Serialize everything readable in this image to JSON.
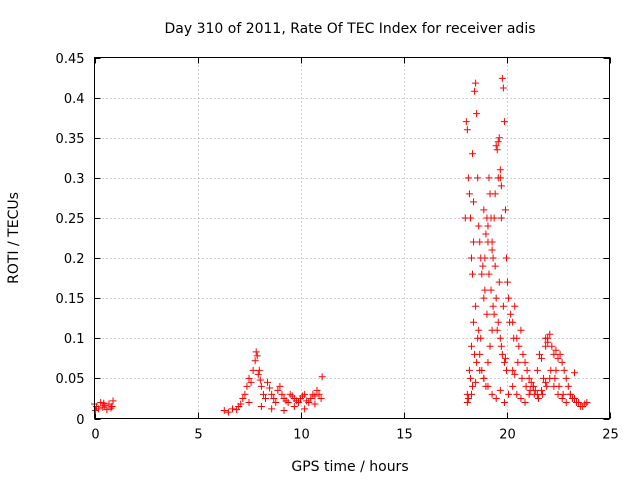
{
  "chart_data": {
    "type": "scatter",
    "title": "Day 310 of 2011, Rate Of TEC Index for receiver adis",
    "xlabel": "GPS time / hours",
    "ylabel": "ROTI / TECUs",
    "xlim": [
      0,
      25
    ],
    "ylim": [
      0,
      0.45
    ],
    "x_ticks": [
      0,
      5,
      10,
      15,
      20,
      25
    ],
    "y_ticks": [
      0,
      0.05,
      0.1,
      0.15,
      0.2,
      0.25,
      0.3,
      0.35,
      0.4,
      0.45
    ],
    "grid": true,
    "marker": "+",
    "color": "#ff0000",
    "series": [
      {
        "x": [
          0.0,
          0.1,
          0.2,
          0.3,
          0.4,
          0.5,
          0.6,
          0.7,
          0.8,
          0.9,
          0.05,
          0.45,
          0.85,
          6.3,
          6.5,
          6.7,
          6.9,
          7.1,
          7.2,
          7.3,
          7.4,
          7.5,
          7.6,
          7.7,
          7.8,
          7.85,
          7.9,
          7.95,
          8.0,
          8.05,
          8.1,
          8.2,
          8.3,
          8.4,
          8.5,
          8.6,
          8.7,
          8.8,
          8.9,
          9.0,
          9.1,
          9.2,
          9.3,
          9.4,
          9.5,
          9.6,
          9.7,
          9.8,
          9.9,
          10.0,
          10.1,
          10.2,
          10.3,
          10.4,
          10.5,
          10.6,
          10.7,
          10.8,
          10.9,
          11.0,
          11.05,
          7.0,
          7.5,
          8.1,
          8.6,
          9.2,
          9.7,
          10.2,
          10.7,
          18.0,
          18.05,
          18.1,
          18.15,
          18.2,
          18.25,
          18.3,
          18.35,
          18.4,
          18.45,
          18.5,
          18.55,
          18.6,
          18.65,
          18.7,
          18.75,
          18.8,
          18.85,
          18.9,
          18.95,
          19.0,
          19.05,
          19.1,
          19.15,
          19.2,
          19.25,
          19.3,
          19.35,
          19.4,
          19.45,
          19.5,
          19.55,
          19.6,
          19.65,
          19.7,
          19.75,
          19.8,
          19.85,
          19.9,
          19.95,
          20.0,
          20.05,
          20.1,
          20.2,
          20.3,
          20.4,
          20.5,
          20.6,
          20.7,
          20.8,
          20.9,
          21.0,
          21.1,
          21.2,
          21.3,
          21.4,
          21.5,
          21.6,
          21.7,
          21.8,
          21.9,
          22.0,
          22.1,
          22.2,
          22.3,
          22.4,
          22.5,
          22.6,
          22.7,
          22.8,
          22.9,
          23.0,
          23.1,
          23.2,
          23.4,
          23.6,
          23.8,
          23.9,
          18.1,
          18.2,
          18.3,
          18.4,
          18.5,
          18.6,
          18.7,
          18.8,
          18.9,
          19.0,
          19.1,
          19.2,
          19.3,
          19.4,
          19.5,
          19.6,
          19.7,
          19.8,
          19.9,
          20.0,
          18.15,
          18.35,
          18.55,
          18.75,
          18.95,
          19.15,
          19.35,
          19.55,
          19.75,
          19.95,
          18.25,
          18.45,
          18.65,
          19.05,
          19.25,
          19.45,
          19.65,
          19.85,
          20.15,
          20.35,
          20.55,
          20.75,
          20.95,
          21.15,
          21.35,
          21.55,
          21.75,
          21.95,
          22.15,
          22.35,
          22.55,
          22.75,
          18.1,
          18.3,
          18.5,
          18.7,
          18.9,
          19.1,
          19.3,
          19.5,
          19.7,
          19.9,
          20.1,
          20.3,
          20.5,
          20.7,
          20.9,
          21.1,
          21.3,
          21.5,
          21.7,
          21.9,
          22.1,
          22.3,
          22.5,
          22.7,
          22.9,
          23.1,
          23.3,
          23.5,
          23.7,
          18.35,
          18.4,
          19.6,
          19.7,
          19.75,
          18.9,
          19.1,
          19.3,
          20.3,
          20.4,
          21.9,
          22.0,
          22.4,
          23.3
        ],
        "y": [
          0.018,
          0.015,
          0.012,
          0.02,
          0.014,
          0.016,
          0.011,
          0.018,
          0.013,
          0.022,
          0.01,
          0.019,
          0.015,
          0.01,
          0.008,
          0.012,
          0.011,
          0.018,
          0.025,
          0.03,
          0.04,
          0.05,
          0.045,
          0.06,
          0.072,
          0.083,
          0.078,
          0.055,
          0.06,
          0.048,
          0.04,
          0.03,
          0.025,
          0.045,
          0.038,
          0.03,
          0.025,
          0.02,
          0.035,
          0.04,
          0.03,
          0.025,
          0.022,
          0.02,
          0.03,
          0.028,
          0.025,
          0.022,
          0.02,
          0.025,
          0.028,
          0.03,
          0.022,
          0.02,
          0.025,
          0.03,
          0.028,
          0.035,
          0.03,
          0.025,
          0.052,
          0.015,
          0.02,
          0.015,
          0.012,
          0.01,
          0.015,
          0.012,
          0.018,
          0.25,
          0.37,
          0.36,
          0.3,
          0.28,
          0.25,
          0.2,
          0.18,
          0.22,
          0.408,
          0.418,
          0.38,
          0.3,
          0.24,
          0.22,
          0.2,
          0.18,
          0.19,
          0.15,
          0.2,
          0.23,
          0.25,
          0.22,
          0.3,
          0.28,
          0.25,
          0.22,
          0.2,
          0.25,
          0.28,
          0.34,
          0.335,
          0.345,
          0.35,
          0.3,
          0.25,
          0.424,
          0.412,
          0.37,
          0.26,
          0.2,
          0.17,
          0.15,
          0.13,
          0.12,
          0.14,
          0.1,
          0.09,
          0.11,
          0.08,
          0.07,
          0.06,
          0.05,
          0.045,
          0.04,
          0.035,
          0.06,
          0.08,
          0.075,
          0.05,
          0.09,
          0.1,
          0.105,
          0.09,
          0.08,
          0.085,
          0.075,
          0.08,
          0.07,
          0.06,
          0.05,
          0.04,
          0.03,
          0.025,
          0.02,
          0.015,
          0.018,
          0.02,
          0.03,
          0.06,
          0.09,
          0.12,
          0.14,
          0.1,
          0.08,
          0.06,
          0.05,
          0.04,
          0.07,
          0.09,
          0.11,
          0.13,
          0.15,
          0.12,
          0.1,
          0.08,
          0.07,
          0.06,
          0.025,
          0.04,
          0.07,
          0.1,
          0.16,
          0.18,
          0.14,
          0.11,
          0.09,
          0.075,
          0.05,
          0.08,
          0.11,
          0.13,
          0.16,
          0.19,
          0.17,
          0.14,
          0.12,
          0.1,
          0.07,
          0.05,
          0.04,
          0.035,
          0.03,
          0.025,
          0.03,
          0.04,
          0.06,
          0.05,
          0.04,
          0.03,
          0.02,
          0.03,
          0.045,
          0.06,
          0.05,
          0.04,
          0.03,
          0.025,
          0.035,
          0.02,
          0.03,
          0.04,
          0.03,
          0.025,
          0.02,
          0.03,
          0.04,
          0.03,
          0.035,
          0.045,
          0.05,
          0.04,
          0.03,
          0.025,
          0.02,
          0.03,
          0.025,
          0.02,
          0.015,
          0.33,
          0.27,
          0.3,
          0.31,
          0.29,
          0.26,
          0.24,
          0.21,
          0.06,
          0.055,
          0.1,
          0.095,
          0.06,
          0.057
        ]
      }
    ]
  }
}
